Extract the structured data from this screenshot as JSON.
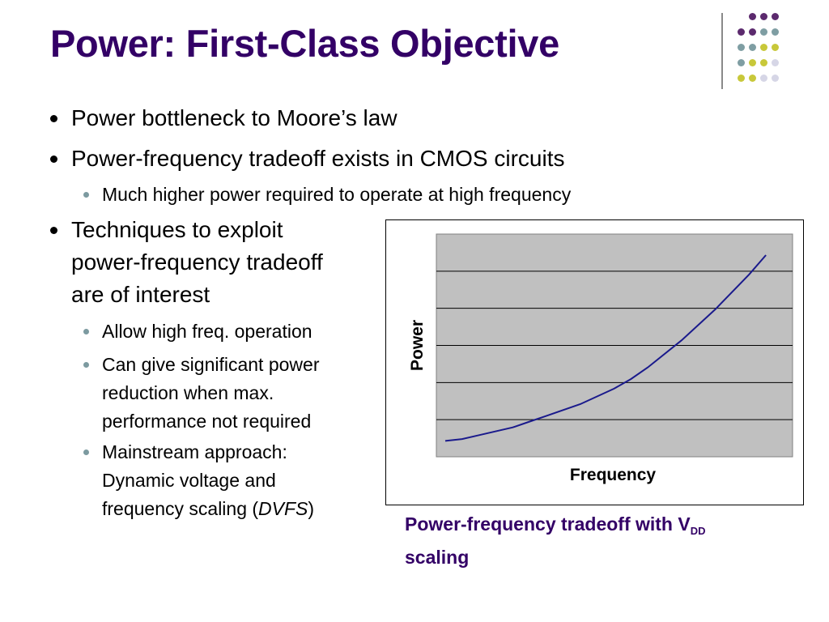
{
  "slide": {
    "title": "Power: First-Class Objective",
    "colors": {
      "title": "#330066",
      "caption": "#330066",
      "curve": "#1a1a8c",
      "plot_bg": "#c0c0c0"
    }
  },
  "bullets": {
    "b1": "Power bottleneck to Moore’s law",
    "b2": "Power-frequency tradeoff exists in CMOS circuits",
    "b2_sub1": "Much higher power required to operate at high frequency",
    "b3_line1": "Techniques to exploit",
    "b3_line2": "power-frequency tradeoff",
    "b3_line3": "are of interest",
    "b3_sub1": "Allow high freq. operation",
    "b3_sub2_line1": "Can give significant power",
    "b3_sub2_line2": "reduction when max.",
    "b3_sub2_line3": "performance not required",
    "b3_sub3_line1": "Mainstream approach:",
    "b3_sub3_line2": "Dynamic voltage and",
    "b3_sub3_line3_pre": "frequency scaling (",
    "b3_sub3_line3_em": "DVFS",
    "b3_sub3_line3_post": ")"
  },
  "caption": {
    "main": "Power-frequency tradeoff with V",
    "sub": "DD",
    "line2": "scaling"
  },
  "decoration": {
    "dot_colors": [
      "#5c2a6e",
      "#7f9ea3",
      "#c8c83a",
      "#d6d6e6"
    ]
  },
  "chart_data": {
    "type": "line",
    "xlabel": "Frequency",
    "ylabel": "Power",
    "xlim": [
      0,
      1
    ],
    "ylim": [
      0,
      1
    ],
    "grid": true,
    "series": [
      {
        "x": [
          0.0,
          0.05,
          0.1,
          0.2,
          0.25,
          0.3,
          0.4,
          0.5,
          0.55,
          0.6,
          0.7,
          0.8,
          0.9,
          0.95
        ],
        "y": [
          0.04,
          0.05,
          0.07,
          0.11,
          0.14,
          0.17,
          0.23,
          0.31,
          0.36,
          0.42,
          0.56,
          0.72,
          0.9,
          1.0
        ]
      }
    ]
  }
}
